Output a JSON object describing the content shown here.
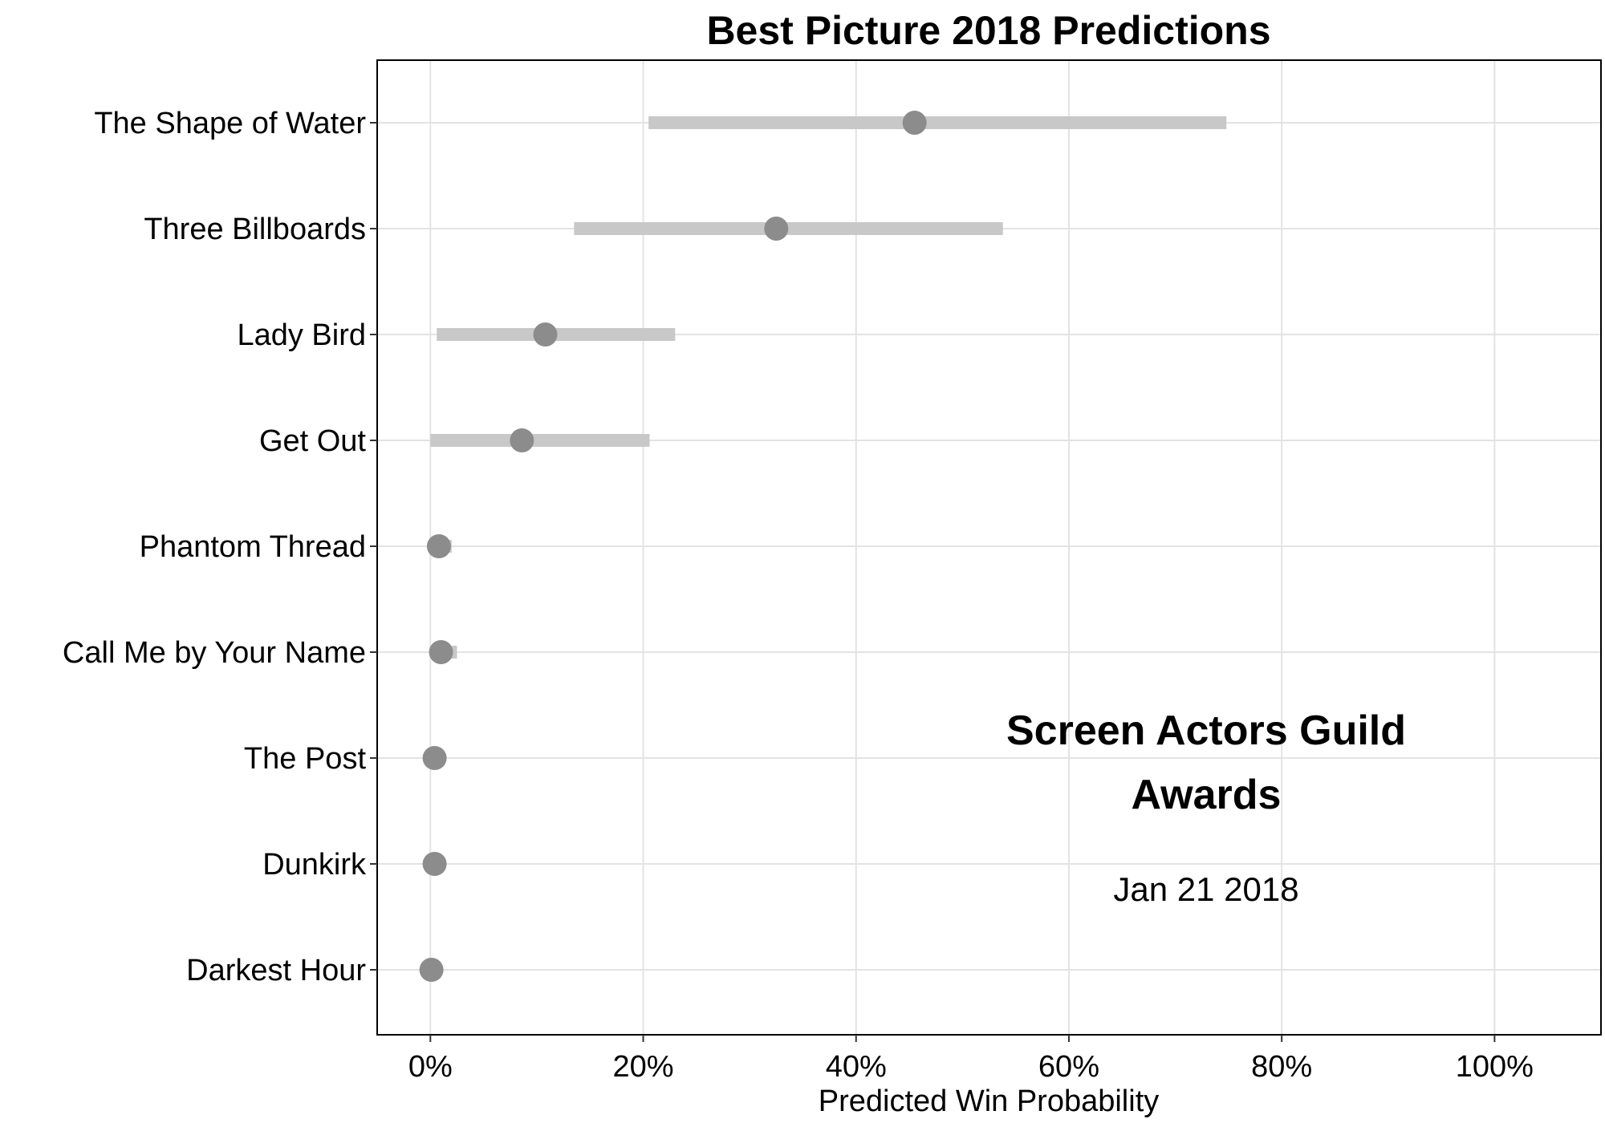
{
  "chart_data": {
    "type": "dot-interval",
    "title": "Best Picture 2018 Predictions",
    "xlabel": "Predicted Win Probability",
    "ylabel": "",
    "xlim": [
      -0.05,
      1.1
    ],
    "x_ticks": [
      0,
      0.2,
      0.4,
      0.6,
      0.8,
      1.0
    ],
    "x_tick_labels": [
      "0%",
      "20%",
      "40%",
      "60%",
      "80%",
      "100%"
    ],
    "grid": true,
    "categories": [
      "The Shape of Water",
      "Three Billboards",
      "Lady Bird",
      "Get Out",
      "Phantom Thread",
      "Call Me by Your Name",
      "The Post",
      "Dunkirk",
      "Darkest Hour"
    ],
    "estimates": [
      0.455,
      0.325,
      0.108,
      0.086,
      0.008,
      0.01,
      0.004,
      0.004,
      0.001
    ],
    "lower": [
      0.205,
      0.135,
      0.006,
      0.0,
      0.0,
      0.0,
      0.0,
      0.0,
      0.0
    ],
    "upper": [
      0.748,
      0.538,
      0.23,
      0.206,
      0.02,
      0.025,
      0.008,
      0.008,
      0.004
    ],
    "point_color": "#8c8c8c",
    "interval_color": "#c8c8c8",
    "annotation": {
      "line1": "Screen Actors Guild",
      "line2": "Awards",
      "date": "Jan 21 2018"
    }
  }
}
